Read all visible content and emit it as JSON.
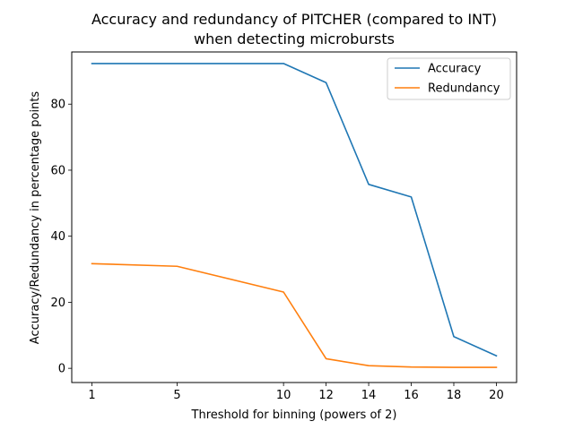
{
  "chart_data": {
    "type": "line",
    "title": [
      "Accuracy and redundancy of PITCHER (compared to INT)",
      "when detecting microbursts"
    ],
    "xlabel": "Threshold for binning (powers of 2)",
    "ylabel": "Accuracy/Redundancy in percentage points",
    "x": [
      1,
      5,
      10,
      12,
      14,
      16,
      18,
      20
    ],
    "xticks": [
      "1",
      "5",
      "10",
      "12",
      "14",
      "16",
      "18",
      "20"
    ],
    "xlim": [
      0.05,
      20.95
    ],
    "yticks": [
      "0",
      "20",
      "40",
      "60",
      "80"
    ],
    "ylim": [
      -4.3,
      95.8
    ],
    "grid": false,
    "legend": "top-right",
    "series": [
      {
        "name": "Accuracy",
        "color": "#1f77b4",
        "values": [
          92.3,
          92.3,
          92.3,
          86.5,
          55.7,
          51.9,
          9.6,
          3.8
        ]
      },
      {
        "name": "Redundancy",
        "color": "#ff7f0e",
        "values": [
          31.7,
          30.9,
          23.1,
          2.9,
          0.8,
          0.4,
          0.3,
          0.3
        ]
      }
    ]
  }
}
